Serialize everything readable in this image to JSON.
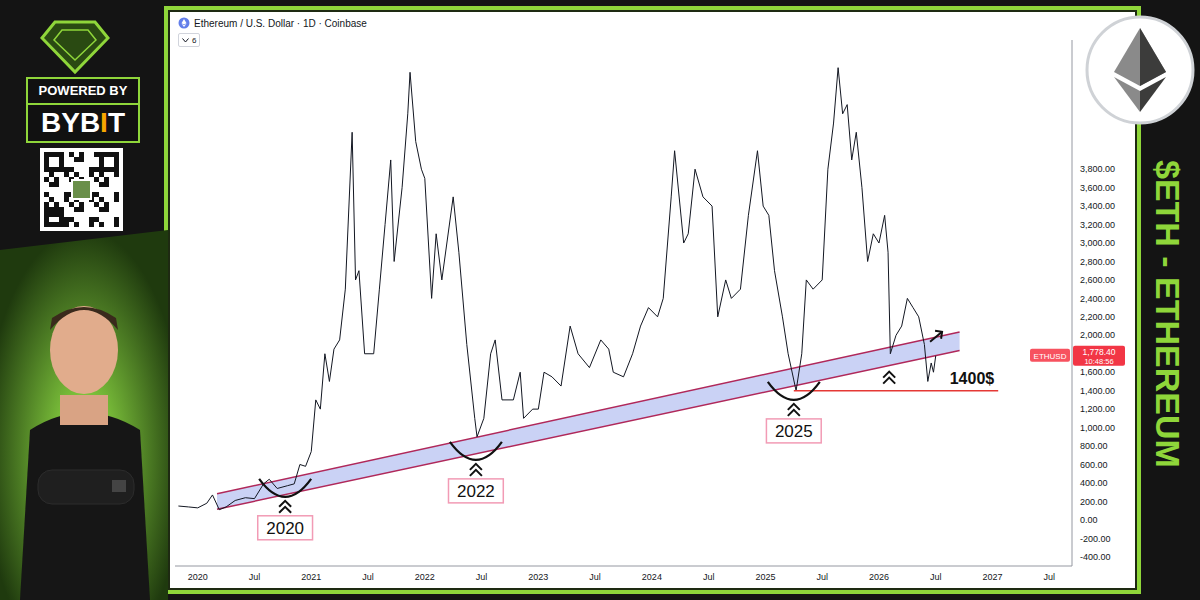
{
  "chart_data": {
    "type": "line",
    "title": "Ethereum / U.S. Dollar · 1D · Coinbase",
    "subtitle": "6",
    "color": "#131722",
    "marker": "none",
    "line_style": "solid",
    "grid": false,
    "x": [
      2019.83,
      2019.92,
      2020.0,
      2020.08,
      2020.13,
      2020.19,
      2020.25,
      2020.33,
      2020.42,
      2020.5,
      2020.58,
      2020.63,
      2020.7,
      2020.79,
      2020.85,
      2020.9,
      2020.95,
      2021.0,
      2021.04,
      2021.08,
      2021.12,
      2021.16,
      2021.2,
      2021.25,
      2021.3,
      2021.36,
      2021.39,
      2021.42,
      2021.47,
      2021.55,
      2021.6,
      2021.65,
      2021.7,
      2021.73,
      2021.8,
      2021.85,
      2021.87,
      2021.92,
      2021.97,
      2022.0,
      2022.06,
      2022.1,
      2022.15,
      2022.25,
      2022.3,
      2022.37,
      2022.44,
      2022.46,
      2022.52,
      2022.58,
      2022.62,
      2022.68,
      2022.78,
      2022.84,
      2022.87,
      2022.95,
      2023.0,
      2023.05,
      2023.12,
      2023.2,
      2023.28,
      2023.35,
      2023.45,
      2023.55,
      2023.62,
      2023.66,
      2023.75,
      2023.83,
      2023.9,
      2023.97,
      2024.05,
      2024.1,
      2024.17,
      2024.2,
      2024.28,
      2024.32,
      2024.38,
      2024.45,
      2024.53,
      2024.58,
      2024.65,
      2024.7,
      2024.78,
      2024.85,
      2024.93,
      2024.98,
      2025.03,
      2025.08,
      2025.15,
      2025.2,
      2025.27,
      2025.32,
      2025.36,
      2025.42,
      2025.5,
      2025.55,
      2025.6,
      2025.64,
      2025.68,
      2025.72,
      2025.76,
      2025.8,
      2025.85,
      2025.9,
      2025.95,
      2026.0,
      2026.05,
      2026.08,
      2026.1,
      2026.15,
      2026.2,
      2026.25,
      2026.3,
      2026.35,
      2026.4,
      2026.43,
      2026.46,
      2026.48,
      2026.5
    ],
    "values": [
      150,
      140,
      130,
      180,
      270,
      110,
      140,
      210,
      240,
      230,
      390,
      440,
      340,
      370,
      390,
      600,
      580,
      740,
      1300,
      1200,
      1800,
      1500,
      1850,
      1950,
      2500,
      4200,
      2600,
      2700,
      1800,
      1800,
      2500,
      3200,
      3900,
      2800,
      3600,
      4400,
      4850,
      4100,
      3800,
      3700,
      2400,
      3100,
      2600,
      3500,
      2900,
      1900,
      1100,
      900,
      1100,
      1800,
      1950,
      1300,
      1300,
      1600,
      1100,
      1200,
      1200,
      1600,
      1550,
      1450,
      2100,
      1800,
      1650,
      1950,
      1850,
      1600,
      1550,
      1800,
      2100,
      2300,
      2200,
      2400,
      3500,
      4000,
      3000,
      3100,
      3800,
      3500,
      3400,
      2200,
      2600,
      2400,
      2500,
      3300,
      4000,
      3400,
      3300,
      2700,
      2200,
      1800,
      1400,
      1800,
      2600,
      2500,
      2600,
      3800,
      4300,
      4900,
      4400,
      4500,
      3900,
      4200,
      3600,
      2800,
      3100,
      3000,
      3300,
      2900,
      1800,
      2000,
      2100,
      2400,
      2300,
      2200,
      1900,
      1500,
      1700,
      1600,
      1778.4
    ],
    "xlim": [
      2019.8,
      2027.7
    ],
    "xticks": [
      {
        "value": 2020,
        "label": "2020"
      },
      {
        "value": 2020.5,
        "label": "Jul"
      },
      {
        "value": 2021,
        "label": "2021"
      },
      {
        "value": 2021.5,
        "label": "Jul"
      },
      {
        "value": 2022,
        "label": "2022"
      },
      {
        "value": 2022.5,
        "label": "Jul"
      },
      {
        "value": 2023,
        "label": "2023"
      },
      {
        "value": 2023.5,
        "label": "Jul"
      },
      {
        "value": 2024,
        "label": "2024"
      },
      {
        "value": 2024.5,
        "label": "Jul"
      },
      {
        "value": 2025,
        "label": "2025"
      },
      {
        "value": 2025.5,
        "label": "Jul"
      },
      {
        "value": 2026,
        "label": "2026"
      },
      {
        "value": 2026.5,
        "label": "Jul"
      },
      {
        "value": 2027,
        "label": "2027"
      },
      {
        "value": 2027.5,
        "label": "Jul"
      }
    ],
    "ylim": [
      -500,
      5200
    ],
    "yticks": [
      {
        "value": -400,
        "label": "-400.00"
      },
      {
        "value": -200,
        "label": "-200.00"
      },
      {
        "value": 0,
        "label": "0.00"
      },
      {
        "value": 200,
        "label": "200.00"
      },
      {
        "value": 400,
        "label": "400.00"
      },
      {
        "value": 600,
        "label": "600.00"
      },
      {
        "value": 800,
        "label": "800.00"
      },
      {
        "value": 1000,
        "label": "1,000.00"
      },
      {
        "value": 1200,
        "label": "1,200.00"
      },
      {
        "value": 1400,
        "label": "1,400.00"
      },
      {
        "value": 1600,
        "label": "1,600.00"
      },
      {
        "value": 2000,
        "label": "2,000.00"
      },
      {
        "value": 2200,
        "label": "2,200.00"
      },
      {
        "value": 2400,
        "label": "2,400.00"
      },
      {
        "value": 2600,
        "label": "2,600.00"
      },
      {
        "value": 2800,
        "label": "2,800.00"
      },
      {
        "value": 3000,
        "label": "3,000.00"
      },
      {
        "value": 3200,
        "label": "3,200.00"
      },
      {
        "value": 3400,
        "label": "3,400.00"
      },
      {
        "value": 3600,
        "label": "3,600.00"
      },
      {
        "value": 3800,
        "label": "3,800.00"
      }
    ],
    "channel": {
      "x": [
        2020.17,
        2026.71
      ],
      "lower": [
        115,
        1836
      ],
      "upper": [
        283,
        2036
      ]
    },
    "annotations": [
      {
        "text": "2020",
        "x": 2020.77,
        "y": 250
      },
      {
        "text": "2022",
        "x": 2022.45,
        "y": 650
      },
      {
        "text": "2025",
        "x": 2025.25,
        "y": 1300
      }
    ],
    "support_marks": [
      {
        "x": 2026.09,
        "y": 1650
      }
    ],
    "arrow": {
      "x": 2026.45,
      "y": 1930
    },
    "support": {
      "label": "1400$",
      "value": 1400,
      "x": [
        2025.25,
        2027.05
      ]
    },
    "last_price": {
      "symbol": "ETHUSD",
      "value": 1778.4,
      "label": "1,778.40",
      "countdown": "10:48:56"
    }
  },
  "frame": {
    "sponsor_label": "POWERED BY",
    "sponsor": "BYBIT",
    "banner": "$ETH - ETHEREUM"
  }
}
